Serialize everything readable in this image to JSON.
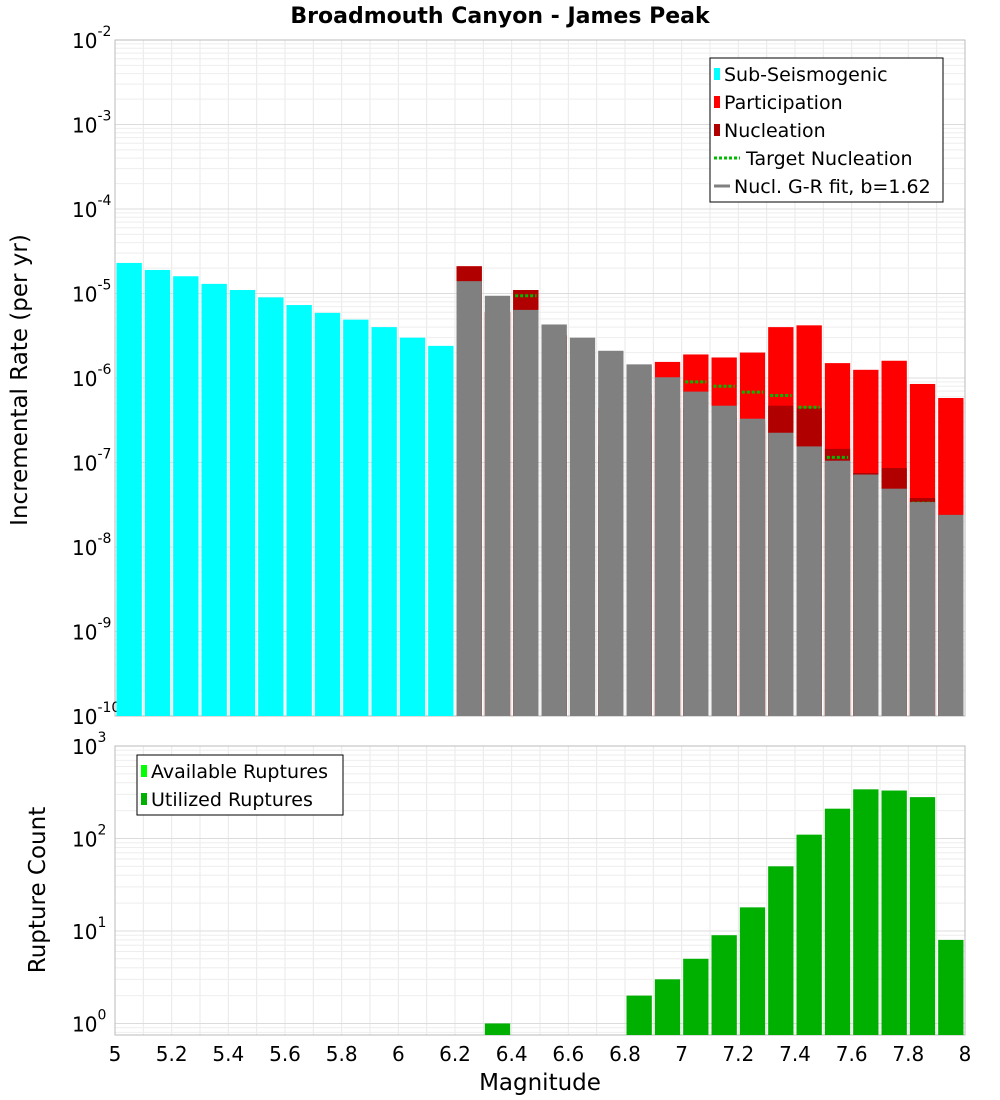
{
  "chart_data": {
    "type": "bar",
    "title": "Broadmouth Canyon - James Peak",
    "xlabel": "Magnitude",
    "xlim": [
      5,
      8
    ],
    "xticks": [
      "5",
      "5.2",
      "5.4",
      "5.6",
      "5.8",
      "6",
      "6.2",
      "6.4",
      "6.6",
      "6.8",
      "7",
      "7.2",
      "7.4",
      "7.6",
      "7.8",
      "8"
    ],
    "bin_width": 0.1,
    "log_scale_y": true,
    "grid": true,
    "panels": [
      {
        "ylabel": "Incremental Rate (per yr)",
        "ylim": [
          1e-10,
          0.01
        ],
        "yticks": [
          {
            "base": "10",
            "exp": "-10"
          },
          {
            "base": "10",
            "exp": "-9"
          },
          {
            "base": "10",
            "exp": "-8"
          },
          {
            "base": "10",
            "exp": "-7"
          },
          {
            "base": "10",
            "exp": "-6"
          },
          {
            "base": "10",
            "exp": "-5"
          },
          {
            "base": "10",
            "exp": "-4"
          },
          {
            "base": "10",
            "exp": "-3"
          },
          {
            "base": "10",
            "exp": "-2"
          }
        ],
        "legend_position": "top-right",
        "legend": [
          {
            "label": "Sub-Seismogenic",
            "kind": "box",
            "color": "#00ffff"
          },
          {
            "label": "Participation",
            "kind": "box",
            "color": "#ff0000"
          },
          {
            "label": "Nucleation",
            "kind": "box",
            "color": "#b00000"
          },
          {
            "label": "Target Nucleation",
            "kind": "dotted",
            "color": "#00bb00"
          },
          {
            "label": "Nucl. G-R fit, b=1.62",
            "kind": "line",
            "color": "#808080"
          }
        ],
        "series": [
          {
            "name": "Sub-Seismogenic",
            "color": "#00ffff",
            "x": [
              5.05,
              5.15,
              5.25,
              5.35,
              5.45,
              5.55,
              5.65,
              5.75,
              5.85,
              5.95,
              6.05,
              6.15
            ],
            "values": [
              2.3e-05,
              1.9e-05,
              1.6e-05,
              1.3e-05,
              1.1e-05,
              9e-06,
              7.3e-06,
              5.9e-06,
              4.9e-06,
              4e-06,
              3e-06,
              2.4e-06
            ]
          },
          {
            "name": "Participation",
            "color": "#ff0000",
            "x": [
              6.25,
              6.35,
              6.45,
              6.55,
              6.75,
              6.85,
              6.95,
              7.05,
              7.15,
              7.25,
              7.35,
              7.45,
              7.55,
              7.65,
              7.75,
              7.85,
              7.95
            ],
            "values": [
              2.1e-05,
              6e-06,
              1.1e-05,
              3.2e-06,
              4.4e-07,
              6.5e-07,
              1.55e-06,
              1.9e-06,
              1.75e-06,
              2e-06,
              4e-06,
              4.2e-06,
              1.5e-06,
              1.25e-06,
              1.6e-06,
              8.5e-07,
              5.8e-07
            ]
          },
          {
            "name": "Nucleation",
            "color": "#b00000",
            "x": [
              6.25,
              6.35,
              6.45,
              6.55,
              6.75,
              6.85,
              6.95,
              7.05,
              7.15,
              7.25,
              7.35,
              7.45,
              7.55,
              7.65,
              7.75,
              7.85,
              7.95
            ],
            "values": [
              2.1e-05,
              6e-06,
              1.1e-05,
              3.2e-06,
              1.6e-07,
              2.2e-07,
              4.4e-07,
              4.4e-07,
              3.4e-07,
              2.9e-07,
              4.7e-07,
              4.4e-07,
              1.45e-07,
              7.5e-08,
              8.6e-08,
              3.8e-08,
              2.4e-08
            ]
          },
          {
            "name": "Target Nucleation",
            "color": "#00bb00",
            "x": [
              6.25,
              6.35,
              6.45,
              6.55,
              6.75,
              6.85,
              6.95,
              7.05,
              7.15,
              7.25,
              7.35,
              7.45,
              7.55,
              7.65,
              7.75,
              7.85,
              7.95
            ],
            "values": [
              1.1e-05,
              5.5e-06,
              9.4e-06,
              2.7e-06,
              4.3e-07,
              6.4e-07,
              9.1e-07,
              9e-07,
              8e-07,
              6.8e-07,
              6.2e-07,
              4.5e-07,
              1.15e-07,
              5.2e-08,
              4.6e-08,
              3.3e-08,
              1.55e-08
            ]
          },
          {
            "name": "Nucl. G-R fit, b=1.62",
            "color": "#808080",
            "x": [
              6.25,
              6.35,
              6.45,
              6.55,
              6.65,
              6.75,
              6.85,
              6.95,
              7.05,
              7.15,
              7.25,
              7.35,
              7.45,
              7.55,
              7.65,
              7.75,
              7.85,
              7.95
            ],
            "values": [
              1.4e-05,
              9.4e-06,
              6.4e-06,
              4.3e-06,
              3e-06,
              2.1e-06,
              1.45e-06,
              1.02e-06,
              6.9e-07,
              4.7e-07,
              3.3e-07,
              2.25e-07,
              1.55e-07,
              1.05e-07,
              7.2e-08,
              4.9e-08,
              3.4e-08,
              2.4e-08
            ]
          }
        ]
      },
      {
        "ylabel": "Rupture Count",
        "ylim": [
          0.75,
          1000
        ],
        "yticks": [
          {
            "base": "10",
            "exp": "0"
          },
          {
            "base": "10",
            "exp": "1"
          },
          {
            "base": "10",
            "exp": "2"
          },
          {
            "base": "10",
            "exp": "3"
          }
        ],
        "legend_position": "top-left",
        "legend": [
          {
            "label": "Available Ruptures",
            "kind": "box",
            "color": "#00ff00"
          },
          {
            "label": "Utilized Ruptures",
            "kind": "box",
            "color": "#00b000"
          }
        ],
        "series": [
          {
            "name": "Utilized Ruptures",
            "color": "#00b000",
            "x": [
              6.35,
              6.85,
              6.95,
              7.05,
              7.15,
              7.25,
              7.35,
              7.45,
              7.55,
              7.65,
              7.75,
              7.85,
              7.95
            ],
            "values": [
              1,
              2,
              3,
              5,
              9,
              18,
              50,
              110,
              210,
              340,
              330,
              280,
              8
            ]
          }
        ]
      }
    ]
  }
}
